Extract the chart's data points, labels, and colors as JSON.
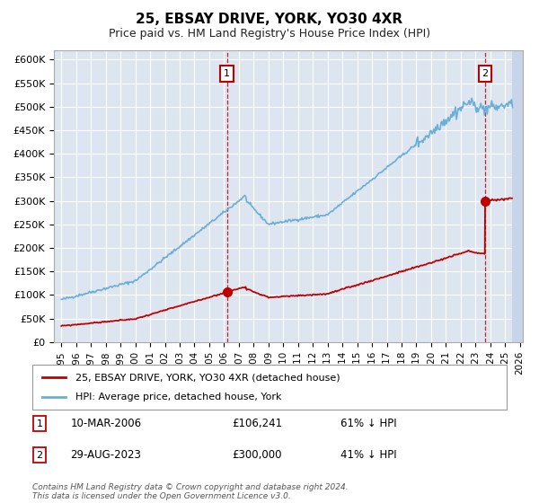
{
  "title": "25, EBSAY DRIVE, YORK, YO30 4XR",
  "subtitle": "Price paid vs. HM Land Registry's House Price Index (HPI)",
  "ylim": [
    0,
    620000
  ],
  "yticks": [
    0,
    50000,
    100000,
    150000,
    200000,
    250000,
    300000,
    350000,
    400000,
    450000,
    500000,
    550000,
    600000
  ],
  "ytick_labels": [
    "£0",
    "£50K",
    "£100K",
    "£150K",
    "£200K",
    "£250K",
    "£300K",
    "£350K",
    "£400K",
    "£450K",
    "£500K",
    "£550K",
    "£600K"
  ],
  "background_color": "#ffffff",
  "plot_bg_color": "#dde6f0",
  "grid_color": "#ffffff",
  "hpi_color": "#6baed6",
  "price_color": "#c00000",
  "transaction1_x": 2006.2,
  "transaction1_y": 106241,
  "transaction2_x": 2023.65,
  "transaction2_y": 300000,
  "legend_label_price": "25, EBSAY DRIVE, YORK, YO30 4XR (detached house)",
  "legend_label_hpi": "HPI: Average price, detached house, York",
  "footnote": "Contains HM Land Registry data © Crown copyright and database right 2024.\nThis data is licensed under the Open Government Licence v3.0.",
  "hatch_color": "#c8d4e8",
  "xlim_start": 1994.5,
  "xlim_end": 2026.2,
  "xtick_years": [
    1995,
    1996,
    1997,
    1998,
    1999,
    2000,
    2001,
    2002,
    2003,
    2004,
    2005,
    2006,
    2007,
    2008,
    2009,
    2010,
    2011,
    2012,
    2013,
    2014,
    2015,
    2016,
    2017,
    2018,
    2019,
    2020,
    2021,
    2022,
    2023,
    2024,
    2025,
    2026
  ]
}
